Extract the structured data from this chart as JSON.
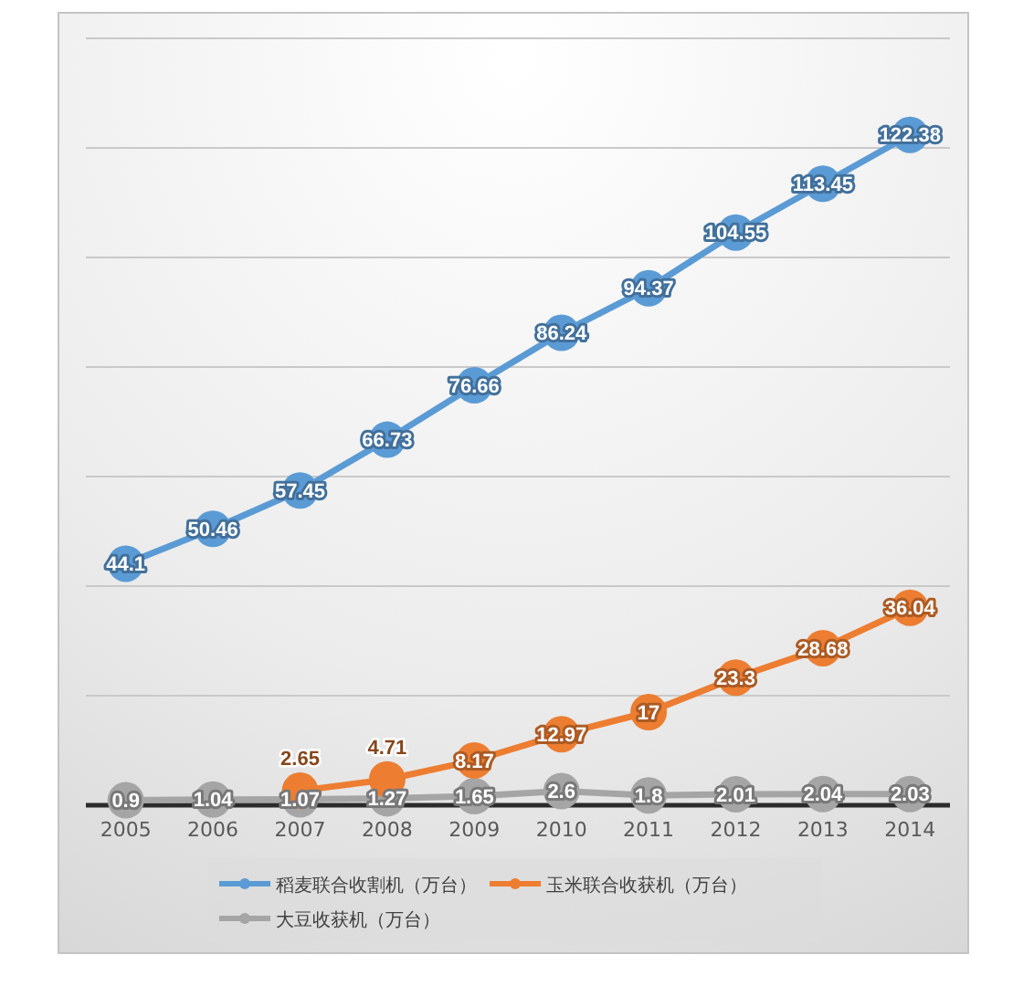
{
  "chart_data": {
    "type": "line",
    "categories": [
      "2005",
      "2006",
      "2007",
      "2008",
      "2009",
      "2010",
      "2011",
      "2012",
      "2013",
      "2014"
    ],
    "series": [
      {
        "name": "稻麦联合收割机（万台）",
        "color": "#5b9bd5",
        "values": [
          44.1,
          50.46,
          57.45,
          66.73,
          76.66,
          86.24,
          94.37,
          104.55,
          113.45,
          122.38
        ]
      },
      {
        "name": "玉米联合收获机（万台）",
        "color": "#ed7d31",
        "values": [
          null,
          null,
          2.65,
          4.71,
          8.17,
          12.97,
          17,
          23.3,
          28.68,
          36.04
        ]
      },
      {
        "name": "大豆收获机（万台）",
        "color": "#a5a5a5",
        "values": [
          0.9,
          1.04,
          1.07,
          1.27,
          1.65,
          2.6,
          1.8,
          2.01,
          2.04,
          2.03
        ]
      }
    ],
    "ylim": [
      0,
      140
    ],
    "yticks": [
      {
        "value": 0,
        "label": null
      },
      {
        "value": 20,
        "label": null
      },
      {
        "value": 40,
        "label": null
      },
      {
        "value": 60,
        "label": null
      },
      {
        "value": 80,
        "label": null
      },
      {
        "value": 100,
        "label": null
      },
      {
        "value": 120,
        "label": null
      },
      {
        "value": 140,
        "label": null
      }
    ],
    "tick_labels": "x",
    "grid": "y",
    "legend": "bottom",
    "marker": "circle",
    "line_style": "solid",
    "data_labels": true
  }
}
